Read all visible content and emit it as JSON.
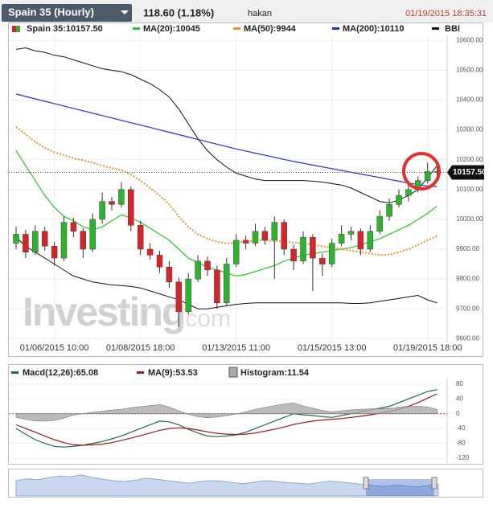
{
  "header": {
    "title": "Spain 35 (Hourly)",
    "change": "118.60 (1.18%)",
    "user": "hakan",
    "timestamp": "01/19/2015 18:35:31"
  },
  "chart_data": [
    {
      "type": "candlestick",
      "legend_label": "Spain 35:10157.50",
      "up_color": "#2bb52b",
      "down_color": "#d9232a",
      "grid": true,
      "categories": [
        null,
        null,
        null,
        null,
        "01/06/2015 10:00",
        null,
        null,
        null,
        null,
        null,
        null,
        null,
        null,
        "01/08/2015 18:00",
        null,
        null,
        null,
        null,
        null,
        null,
        null,
        null,
        null,
        "01/13/2015 11:00",
        null,
        null,
        null,
        null,
        null,
        null,
        null,
        null,
        null,
        "01/15/2015 13:00",
        null,
        null,
        null,
        null,
        null,
        null,
        null,
        null,
        null,
        "01/19/2015 18:00",
        null
      ],
      "open": [
        9920,
        9950,
        9890,
        9960,
        9910,
        9870,
        9990,
        9960,
        9900,
        10000,
        10060,
        10050,
        10100,
        9980,
        9900,
        9880,
        9840,
        9790,
        9690,
        9800,
        9860,
        9830,
        9720,
        9850,
        9930,
        9920,
        9960,
        9930,
        9990,
        9900,
        9860,
        9940,
        9870,
        9850,
        9920,
        9950,
        9960,
        9900,
        9960,
        10010,
        10050,
        10080,
        10100,
        10130,
        10160
      ],
      "high": [
        9975,
        9965,
        9980,
        9975,
        9925,
        10010,
        10005,
        9970,
        10020,
        10090,
        10075,
        10125,
        10110,
        9995,
        9920,
        9895,
        9860,
        9805,
        9820,
        9880,
        9875,
        9845,
        9870,
        9950,
        9945,
        9985,
        9975,
        10010,
        10000,
        9915,
        9960,
        9950,
        9885,
        9935,
        9980,
        9975,
        9970,
        9980,
        10030,
        10070,
        10100,
        10120,
        10145,
        10190,
        10175
      ],
      "low": [
        9900,
        9870,
        9880,
        9895,
        9845,
        9860,
        9940,
        9870,
        9890,
        9985,
        10030,
        10040,
        9960,
        9880,
        9865,
        9820,
        9770,
        9640,
        9680,
        9790,
        9810,
        9700,
        9710,
        9840,
        9900,
        9910,
        9915,
        9800,
        9880,
        9830,
        9850,
        9760,
        9810,
        9840,
        9910,
        9930,
        9880,
        9890,
        9950,
        9995,
        10040,
        10060,
        10090,
        10120,
        10130
      ],
      "close": [
        9950,
        9890,
        9960,
        9910,
        9870,
        9990,
        9960,
        9900,
        10000,
        10060,
        10050,
        10100,
        9980,
        9900,
        9880,
        9840,
        9790,
        9690,
        9800,
        9860,
        9830,
        9720,
        9850,
        9930,
        9920,
        9960,
        9930,
        9990,
        9900,
        9860,
        9940,
        9870,
        9850,
        9920,
        9950,
        9960,
        9900,
        9960,
        10010,
        10050,
        10080,
        10100,
        10130,
        10160,
        10157.5
      ],
      "series": [
        {
          "name": "MA(20):10045",
          "color": "#22cc22",
          "values": [
            10230,
            10180,
            10130,
            10080,
            10040,
            10010,
            9995,
            9975,
            9965,
            9975,
            9995,
            10015,
            10005,
            9990,
            9970,
            9950,
            9930,
            9900,
            9870,
            9855,
            9840,
            9830,
            9820,
            9810,
            9815,
            9825,
            9835,
            9845,
            9860,
            9870,
            9880,
            9885,
            9890,
            9895,
            9900,
            9905,
            9915,
            9925,
            9935,
            9950,
            9965,
            9980,
            10000,
            10020,
            10045
          ]
        },
        {
          "name": "MA(50):9944",
          "color": "#f0902a",
          "dash": true,
          "values": [
            10310,
            10285,
            10260,
            10240,
            10225,
            10215,
            10205,
            10198,
            10190,
            10180,
            10172,
            10165,
            10150,
            10130,
            10105,
            10080,
            10050,
            10010,
            9975,
            9950,
            9935,
            9925,
            9920,
            9922,
            9925,
            9928,
            9930,
            9928,
            9925,
            9922,
            9920,
            9915,
            9910,
            9905,
            9900,
            9895,
            9890,
            9885,
            9880,
            9882,
            9890,
            9900,
            9915,
            9930,
            9944
          ]
        },
        {
          "name": "MA(200):10110",
          "color": "#2233cc",
          "values": [
            10420,
            10412,
            10404,
            10396,
            10388,
            10380,
            10372,
            10364,
            10356,
            10348,
            10340,
            10332,
            10324,
            10316,
            10308,
            10300,
            10292,
            10284,
            10276,
            10268,
            10260,
            10252,
            10244,
            10236,
            10229,
            10222,
            10215,
            10208,
            10201,
            10194,
            10188,
            10182,
            10176,
            10170,
            10164,
            10158,
            10152,
            10146,
            10140,
            10134,
            10128,
            10122,
            10116,
            10112,
            10110
          ]
        }
      ],
      "bands": {
        "name": "BBI",
        "color": "#111111",
        "upper": [
          10570,
          10575,
          10565,
          10560,
          10550,
          10545,
          10535,
          10525,
          10515,
          10505,
          10500,
          10495,
          10485,
          10470,
          10455,
          10435,
          10410,
          10370,
          10320,
          10270,
          10230,
          10200,
          10175,
          10155,
          10145,
          10135,
          10130,
          10130,
          10130,
          10130,
          10130,
          10128,
          10125,
          10120,
          10115,
          10105,
          10090,
          10075,
          10060,
          10055,
          10065,
          10080,
          10100,
          10140,
          10180
        ],
        "lower": [
          9940,
          9910,
          9890,
          9870,
          9850,
          9830,
          9810,
          9800,
          9790,
          9785,
          9780,
          9778,
          9775,
          9770,
          9760,
          9750,
          9740,
          9730,
          9715,
          9700,
          9700,
          9705,
          9710,
          9715,
          9718,
          9720,
          9720,
          9720,
          9720,
          9720,
          9720,
          9720,
          9720,
          9720,
          9720,
          9718,
          9718,
          9720,
          9725,
          9730,
          9735,
          9740,
          9745,
          9730,
          9720
        ]
      },
      "last_price": {
        "value": 10157.5,
        "label": "10157.50"
      },
      "ylim": [
        9590,
        10660
      ],
      "yticks": [
        {
          "value": 10600,
          "label": "10600.00"
        },
        {
          "value": 10500,
          "label": "10500.00"
        },
        {
          "value": 10400,
          "label": "10400.00"
        },
        {
          "value": 10300,
          "label": "10300.00"
        },
        {
          "value": 10200,
          "label": "10200.00"
        },
        {
          "value": 10100,
          "label": "10100.00"
        },
        {
          "value": 10000,
          "label": "10000.00"
        },
        {
          "value": 9900,
          "label": "9900.00"
        },
        {
          "value": 9800,
          "label": "9800.00"
        },
        {
          "value": 9700,
          "label": "9700.00"
        },
        {
          "value": 9600,
          "label": "9600.00"
        }
      ],
      "watermark": [
        "Investing",
        ".com"
      ]
    },
    {
      "type": "macd",
      "ylim": [
        -133,
        97
      ],
      "yticks": [
        80,
        40,
        0,
        -40,
        -80,
        -120
      ],
      "series": [
        {
          "name": "Macd(12,26):65.08",
          "color": "#1a6b4a",
          "values": [
            -40,
            -55,
            -70,
            -80,
            -88,
            -90,
            -88,
            -85,
            -80,
            -75,
            -68,
            -60,
            -50,
            -40,
            -30,
            -20,
            -22,
            -30,
            -42,
            -52,
            -60,
            -62,
            -60,
            -57,
            -50,
            -40,
            -30,
            -20,
            -10,
            0,
            -3,
            -5,
            -8,
            -10,
            -5,
            0,
            5,
            10,
            15,
            20,
            30,
            40,
            50,
            60,
            65.08
          ]
        },
        {
          "name": "MA(9):53.53",
          "color": "#9b1b1b",
          "values": [
            -30,
            -40,
            -50,
            -60,
            -70,
            -78,
            -84,
            -85,
            -84,
            -82,
            -78,
            -72,
            -66,
            -59,
            -52,
            -45,
            -40,
            -38,
            -40,
            -44,
            -49,
            -53,
            -55,
            -56,
            -55,
            -52,
            -47,
            -42,
            -36,
            -29,
            -24,
            -20,
            -17,
            -15,
            -13,
            -10,
            -7,
            -3,
            1,
            6,
            12,
            20,
            30,
            42,
            53.53
          ]
        },
        {
          "name": "Histogram:11.54",
          "color": "#aaaaaa",
          "kind": "histogram",
          "values": [
            -10,
            -15,
            -20,
            -20,
            -18,
            -12,
            -4,
            0,
            4,
            7,
            10,
            12,
            16,
            19,
            22,
            25,
            18,
            8,
            -2,
            -8,
            -11,
            -9,
            -5,
            -1,
            5,
            12,
            17,
            22,
            26,
            29,
            21,
            15,
            9,
            5,
            8,
            10,
            12,
            13,
            14,
            14,
            18,
            20,
            20,
            18,
            11.54
          ]
        }
      ]
    }
  ],
  "navigator": {
    "values": [
      30,
      34,
      32,
      36,
      40,
      38,
      42,
      37,
      33,
      30,
      28,
      31,
      35,
      33,
      30,
      27,
      25,
      28,
      30,
      29,
      26,
      24,
      27,
      30,
      28,
      26,
      25,
      23,
      26,
      29,
      27,
      25,
      22,
      20,
      18,
      21,
      19,
      17,
      20,
      22
    ]
  }
}
